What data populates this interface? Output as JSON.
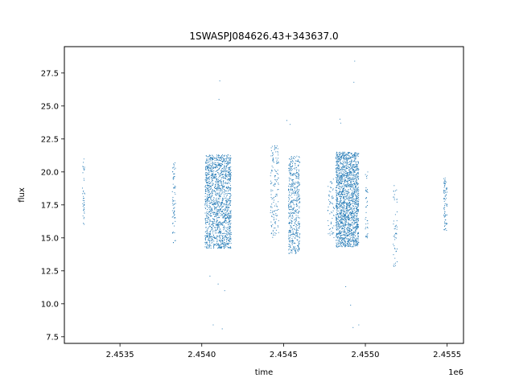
{
  "chart_data": {
    "type": "scatter",
    "title": "1SWASPJ084626.43+343637.0",
    "xlabel": "time",
    "ylabel": "flux",
    "x_offset_label": "1e6",
    "xlim": [
      2453160,
      2455600
    ],
    "ylim": [
      7.0,
      29.5
    ],
    "x_ticks": [
      {
        "value": 2453500,
        "label": "2.4535"
      },
      {
        "value": 2454000,
        "label": "2.4540"
      },
      {
        "value": 2454500,
        "label": "2.4545"
      },
      {
        "value": 2455000,
        "label": "2.4550"
      },
      {
        "value": 2455500,
        "label": "2.4555"
      }
    ],
    "y_ticks": [
      {
        "value": 7.5,
        "label": "7.5"
      },
      {
        "value": 10.0,
        "label": "10.0"
      },
      {
        "value": 12.5,
        "label": "12.5"
      },
      {
        "value": 15.0,
        "label": "15.0"
      },
      {
        "value": 17.5,
        "label": "17.5"
      },
      {
        "value": 20.0,
        "label": "20.0"
      },
      {
        "value": 22.5,
        "label": "22.5"
      },
      {
        "value": 25.0,
        "label": "25.0"
      },
      {
        "value": 27.5,
        "label": "27.5"
      }
    ],
    "grid": false,
    "legend": "none",
    "marker_color": "#1f77b4",
    "observing_seasons": [
      {
        "x_range": [
          2453270,
          2453285
        ],
        "flux_range": [
          16.0,
          21.0
        ],
        "approx_points": 40
      },
      {
        "x_range": [
          2453820,
          2453840
        ],
        "flux_range": [
          14.6,
          20.7
        ],
        "approx_points": 70
      },
      {
        "x_range": [
          2454020,
          2454180
        ],
        "flux_range": [
          14.2,
          21.3
        ],
        "approx_points": 1500
      },
      {
        "x_range": [
          2454420,
          2454470
        ],
        "flux_range": [
          15.0,
          22.0
        ],
        "approx_points": 150
      },
      {
        "x_range": [
          2454530,
          2454600
        ],
        "flux_range": [
          13.8,
          21.2
        ],
        "approx_points": 500
      },
      {
        "x_range": [
          2454770,
          2454810
        ],
        "flux_range": [
          15.0,
          19.5
        ],
        "approx_points": 60
      },
      {
        "x_range": [
          2454820,
          2454960
        ],
        "flux_range": [
          14.3,
          21.5
        ],
        "approx_points": 1800
      },
      {
        "x_range": [
          2455000,
          2455015
        ],
        "flux_range": [
          15.0,
          20.0
        ],
        "approx_points": 40
      },
      {
        "x_range": [
          2455170,
          2455195
        ],
        "flux_range": [
          12.8,
          19.0
        ],
        "approx_points": 50
      },
      {
        "x_range": [
          2455480,
          2455500
        ],
        "flux_range": [
          15.5,
          19.6
        ],
        "approx_points": 80
      }
    ],
    "outliers": [
      {
        "x": 2454110,
        "y": 26.9
      },
      {
        "x": 2454105,
        "y": 25.5
      },
      {
        "x": 2454140,
        "y": 11.0
      },
      {
        "x": 2454100,
        "y": 11.5
      },
      {
        "x": 2454050,
        "y": 12.1
      },
      {
        "x": 2454070,
        "y": 8.4
      },
      {
        "x": 2454125,
        "y": 8.1
      },
      {
        "x": 2454520,
        "y": 23.9
      },
      {
        "x": 2454540,
        "y": 23.6
      },
      {
        "x": 2454845,
        "y": 24.0
      },
      {
        "x": 2454850,
        "y": 23.7
      },
      {
        "x": 2454880,
        "y": 11.3
      },
      {
        "x": 2454910,
        "y": 9.9
      },
      {
        "x": 2454935,
        "y": 28.4
      },
      {
        "x": 2454930,
        "y": 26.8
      },
      {
        "x": 2454925,
        "y": 8.2
      },
      {
        "x": 2454960,
        "y": 8.4
      }
    ]
  }
}
